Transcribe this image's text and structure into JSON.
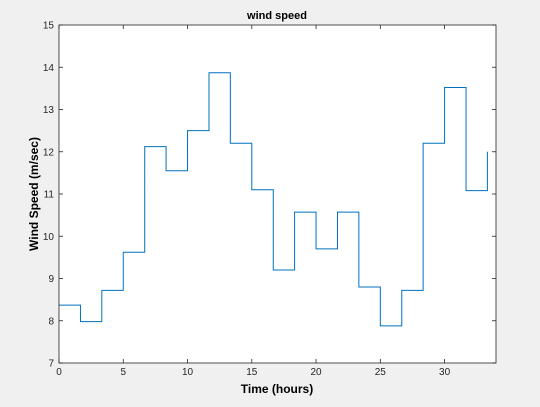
{
  "chart_data": {
    "type": "line",
    "title": "wind speed",
    "xlabel": "Time (hours)",
    "ylabel": "Wind Speed (m/sec)",
    "xlim": [
      0,
      34
    ],
    "ylim": [
      7,
      15
    ],
    "xticks": [
      0,
      5,
      10,
      15,
      20,
      25,
      30
    ],
    "yticks": [
      7,
      8,
      9,
      10,
      11,
      12,
      13,
      14,
      15
    ],
    "grid": false,
    "step": true,
    "colors": {
      "series": "#0072bd",
      "axes": "#262626",
      "background": "#ffffff"
    },
    "series": [
      {
        "x": [
          0,
          1.67,
          3.33,
          5.0,
          6.67,
          8.33,
          10.0,
          11.67,
          13.33,
          15.0,
          16.67,
          18.33,
          20.0,
          21.67,
          23.33,
          25.0,
          26.67,
          28.33,
          30.0,
          31.67,
          33.33
        ],
        "values": [
          8.37,
          7.98,
          8.72,
          9.62,
          12.12,
          11.55,
          12.5,
          13.87,
          12.2,
          11.1,
          9.2,
          10.57,
          9.7,
          10.57,
          8.8,
          7.88,
          8.72,
          12.2,
          13.52,
          11.08,
          12.0
        ]
      }
    ]
  }
}
